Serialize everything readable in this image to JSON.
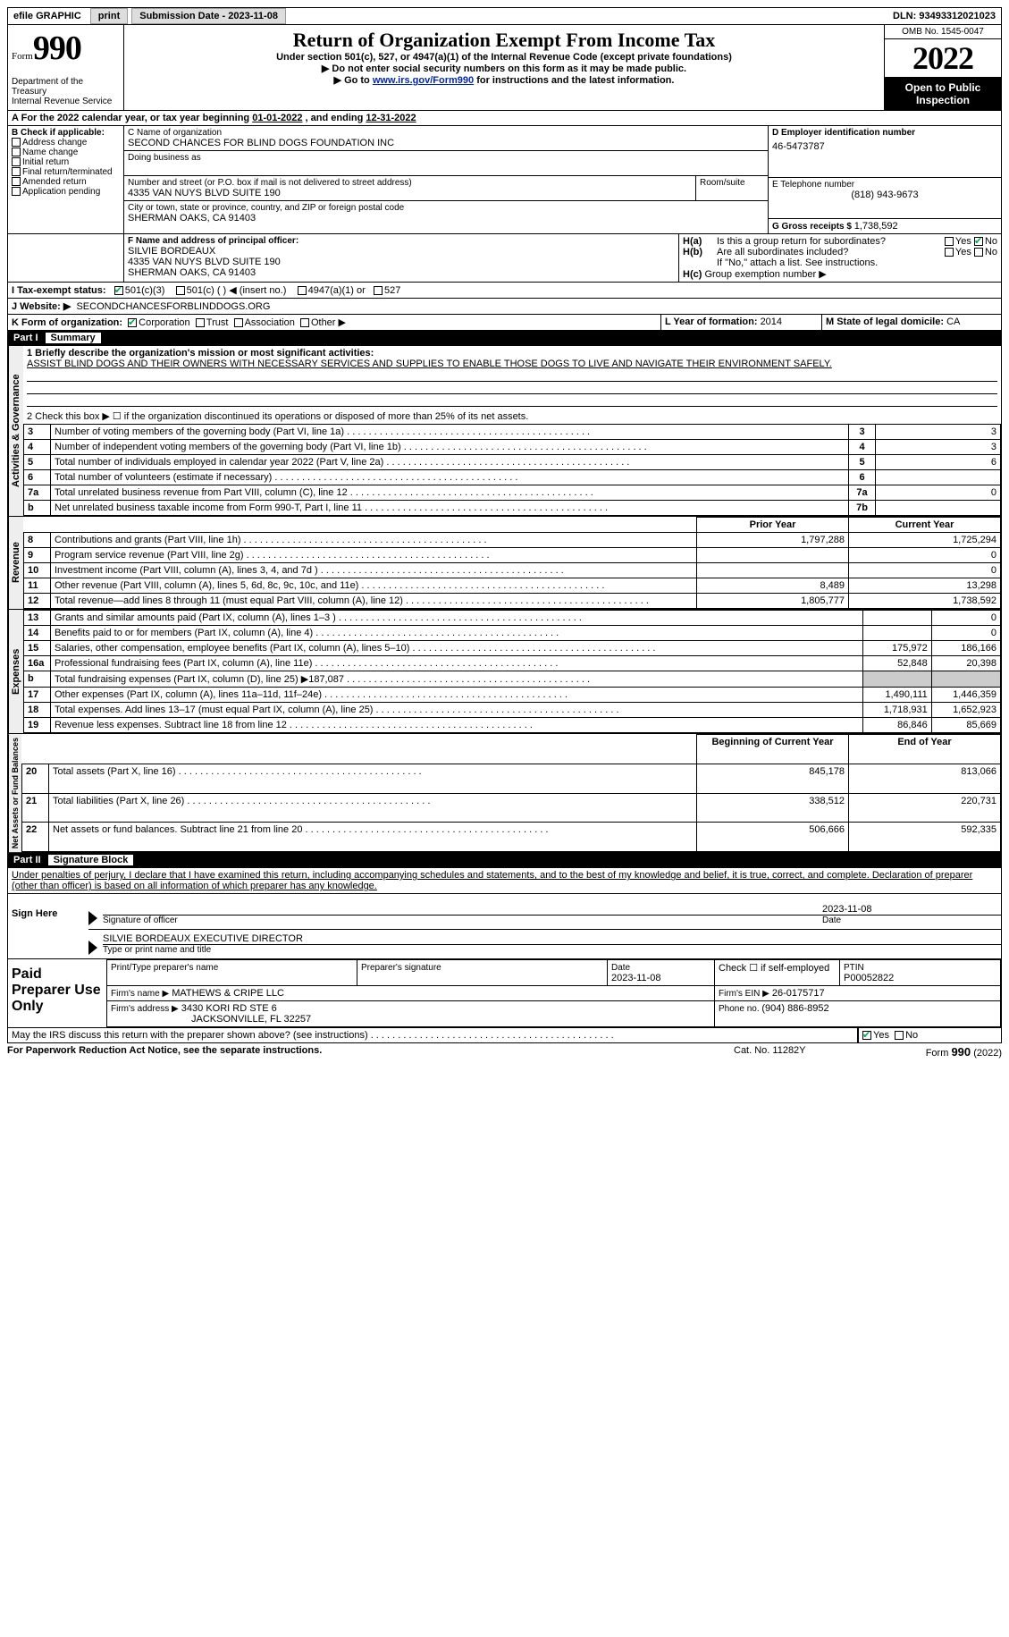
{
  "topbar": {
    "efile": "efile GRAPHIC",
    "print": "print",
    "submission_label": "Submission Date - ",
    "submission_date": "2023-11-08",
    "dln_label": "DLN: ",
    "dln": "93493312021023"
  },
  "header": {
    "form_prefix": "Form",
    "form_number": "990",
    "dept": "Department of the Treasury\nInternal Revenue Service",
    "title": "Return of Organization Exempt From Income Tax",
    "subtitle": "Under section 501(c), 527, or 4947(a)(1) of the Internal Revenue Code (except private foundations)",
    "note1": "▶ Do not enter social security numbers on this form as it may be made public.",
    "note2_pre": "▶ Go to ",
    "note2_link": "www.irs.gov/Form990",
    "note2_post": " for instructions and the latest information.",
    "omb": "OMB No. 1545-0047",
    "tax_year": "2022",
    "open_to_public": "Open to Public Inspection"
  },
  "period": {
    "line": "For the 2022 calendar year, or tax year beginning ",
    "begin": "01-01-2022",
    "mid": " , and ending ",
    "end": "12-31-2022"
  },
  "boxB": {
    "label": "B Check if applicable:",
    "items": [
      "Address change",
      "Name change",
      "Initial return",
      "Final return/terminated",
      "Amended return",
      "Application pending"
    ]
  },
  "boxC": {
    "name_label": "C Name of organization",
    "name": "SECOND CHANCES FOR BLIND DOGS FOUNDATION INC",
    "dba_label": "Doing business as",
    "addr_label": "Number and street (or P.O. box if mail is not delivered to street address)",
    "room_label": "Room/suite",
    "addr": "4335 VAN NUYS BLVD SUITE 190",
    "city_label": "City or town, state or province, country, and ZIP or foreign postal code",
    "city": "SHERMAN OAKS, CA  91403"
  },
  "boxD": {
    "label": "D Employer identification number",
    "value": "46-5473787"
  },
  "boxE": {
    "label": "E Telephone number",
    "value": "(818) 943-9673"
  },
  "boxG": {
    "label": "G Gross receipts $ ",
    "value": "1,738,592"
  },
  "boxF": {
    "label": "F Name and address of principal officer:",
    "name": "SILVIE BORDEAUX",
    "addr1": "4335 VAN NUYS BLVD SUITE 190",
    "addr2": "SHERMAN OAKS, CA  91403"
  },
  "boxH": {
    "a_label": "H(a)  Is this a group return for subordinates?",
    "b_label": "H(b)  Are all subordinates included?",
    "b_note": "If \"No,\" attach a list. See instructions.",
    "c_label": "H(c)  Group exemption number ▶",
    "yes": "Yes",
    "no": "No"
  },
  "boxI": {
    "label": "I   Tax-exempt status:",
    "opts": [
      "501(c)(3)",
      "501(c) (  ) ◀ (insert no.)",
      "4947(a)(1) or",
      "527"
    ]
  },
  "boxJ": {
    "label": "J   Website: ▶",
    "value": "SECONDCHANCESFORBLINDDOGS.ORG"
  },
  "boxK": {
    "label": "K Form of organization:",
    "opts": [
      "Corporation",
      "Trust",
      "Association",
      "Other ▶"
    ]
  },
  "boxL": {
    "label": "L Year of formation: ",
    "value": "2014"
  },
  "boxM": {
    "label": "M State of legal domicile: ",
    "value": "CA"
  },
  "part1": {
    "title_part": "Part I",
    "title": "Summary",
    "q1_label": "1  Briefly describe the organization's mission or most significant activities:",
    "q1_text": "ASSIST BLIND DOGS AND THEIR OWNERS WITH NECESSARY SERVICES AND SUPPLIES TO ENABLE THOSE DOGS TO LIVE AND NAVIGATE THEIR ENVIRONMENT SAFELY.",
    "q2": "2   Check this box ▶ ☐  if the organization discontinued its operations or disposed of more than 25% of its net assets.",
    "rows_ag": [
      {
        "n": "3",
        "t": "Number of voting members of the governing body (Part VI, line 1a)",
        "b": "3",
        "v": "3"
      },
      {
        "n": "4",
        "t": "Number of independent voting members of the governing body (Part VI, line 1b)",
        "b": "4",
        "v": "3"
      },
      {
        "n": "5",
        "t": "Total number of individuals employed in calendar year 2022 (Part V, line 2a)",
        "b": "5",
        "v": "6"
      },
      {
        "n": "6",
        "t": "Total number of volunteers (estimate if necessary)",
        "b": "6",
        "v": ""
      },
      {
        "n": "7a",
        "t": "Total unrelated business revenue from Part VIII, column (C), line 12",
        "b": "7a",
        "v": "0"
      },
      {
        "n": "b",
        "t": "Net unrelated business taxable income from Form 990-T, Part I, line 11",
        "b": "7b",
        "v": ""
      }
    ],
    "col_prior": "Prior Year",
    "col_curr": "Current Year",
    "rows_rev": [
      {
        "n": "8",
        "t": "Contributions and grants (Part VIII, line 1h)",
        "p": "1,797,288",
        "c": "1,725,294"
      },
      {
        "n": "9",
        "t": "Program service revenue (Part VIII, line 2g)",
        "p": "",
        "c": "0"
      },
      {
        "n": "10",
        "t": "Investment income (Part VIII, column (A), lines 3, 4, and 7d )",
        "p": "",
        "c": "0"
      },
      {
        "n": "11",
        "t": "Other revenue (Part VIII, column (A), lines 5, 6d, 8c, 9c, 10c, and 11e)",
        "p": "8,489",
        "c": "13,298"
      },
      {
        "n": "12",
        "t": "Total revenue—add lines 8 through 11 (must equal Part VIII, column (A), line 12)",
        "p": "1,805,777",
        "c": "1,738,592"
      }
    ],
    "rows_exp": [
      {
        "n": "13",
        "t": "Grants and similar amounts paid (Part IX, column (A), lines 1–3 )",
        "p": "",
        "c": "0"
      },
      {
        "n": "14",
        "t": "Benefits paid to or for members (Part IX, column (A), line 4)",
        "p": "",
        "c": "0"
      },
      {
        "n": "15",
        "t": "Salaries, other compensation, employee benefits (Part IX, column (A), lines 5–10)",
        "p": "175,972",
        "c": "186,166"
      },
      {
        "n": "16a",
        "t": "Professional fundraising fees (Part IX, column (A), line 11e)",
        "p": "52,848",
        "c": "20,398"
      },
      {
        "n": "b",
        "t": "Total fundraising expenses (Part IX, column (D), line 25) ▶187,087",
        "p": "GRAY",
        "c": "GRAY"
      },
      {
        "n": "17",
        "t": "Other expenses (Part IX, column (A), lines 11a–11d, 11f–24e)",
        "p": "1,490,111",
        "c": "1,446,359"
      },
      {
        "n": "18",
        "t": "Total expenses. Add lines 13–17 (must equal Part IX, column (A), line 25)",
        "p": "1,718,931",
        "c": "1,652,923"
      },
      {
        "n": "19",
        "t": "Revenue less expenses. Subtract line 18 from line 12",
        "p": "86,846",
        "c": "85,669"
      }
    ],
    "col_begin": "Beginning of Current Year",
    "col_end": "End of Year",
    "rows_na": [
      {
        "n": "20",
        "t": "Total assets (Part X, line 16)",
        "p": "845,178",
        "c": "813,066"
      },
      {
        "n": "21",
        "t": "Total liabilities (Part X, line 26)",
        "p": "338,512",
        "c": "220,731"
      },
      {
        "n": "22",
        "t": "Net assets or fund balances. Subtract line 21 from line 20",
        "p": "506,666",
        "c": "592,335"
      }
    ],
    "vlab_ag": "Activities & Governance",
    "vlab_rev": "Revenue",
    "vlab_exp": "Expenses",
    "vlab_na": "Net Assets or Fund Balances"
  },
  "part2": {
    "title_part": "Part II",
    "title": "Signature Block",
    "decl": "Under penalties of perjury, I declare that I have examined this return, including accompanying schedules and statements, and to the best of my knowledge and belief, it is true, correct, and complete. Declaration of preparer (other than officer) is based on all information of which preparer has any knowledge.",
    "sign_here": "Sign Here",
    "sig_officer": "Signature of officer",
    "date_label": "Date",
    "sig_date": "2023-11-08",
    "print_name": "SILVIE BORDEAUX  EXECUTIVE DIRECTOR",
    "print_label": "Type or print name and title",
    "paid": "Paid Preparer Use Only",
    "pp_name_label": "Print/Type preparer's name",
    "pp_sig_label": "Preparer's signature",
    "pp_date_label": "Date",
    "pp_date": "2023-11-08",
    "pp_check": "Check ☐ if self-employed",
    "ptin_label": "PTIN",
    "ptin": "P00052822",
    "firm_name_label": "Firm's name    ▶",
    "firm_name": "MATHEWS & CRIPE LLC",
    "firm_ein_label": "Firm's EIN ▶",
    "firm_ein": "26-0175717",
    "firm_addr_label": "Firm's address ▶",
    "firm_addr1": "3430 KORI RD STE 6",
    "firm_addr2": "JACKSONVILLE, FL  32257",
    "phone_label": "Phone no. ",
    "phone": "(904) 886-8952",
    "discuss": "May the IRS discuss this return with the preparer shown above? (see instructions)",
    "yes": "Yes",
    "no": "No"
  },
  "footer": {
    "pra": "For Paperwork Reduction Act Notice, see the separate instructions.",
    "cat": "Cat. No. 11282Y",
    "form": "Form 990 (2022)"
  }
}
